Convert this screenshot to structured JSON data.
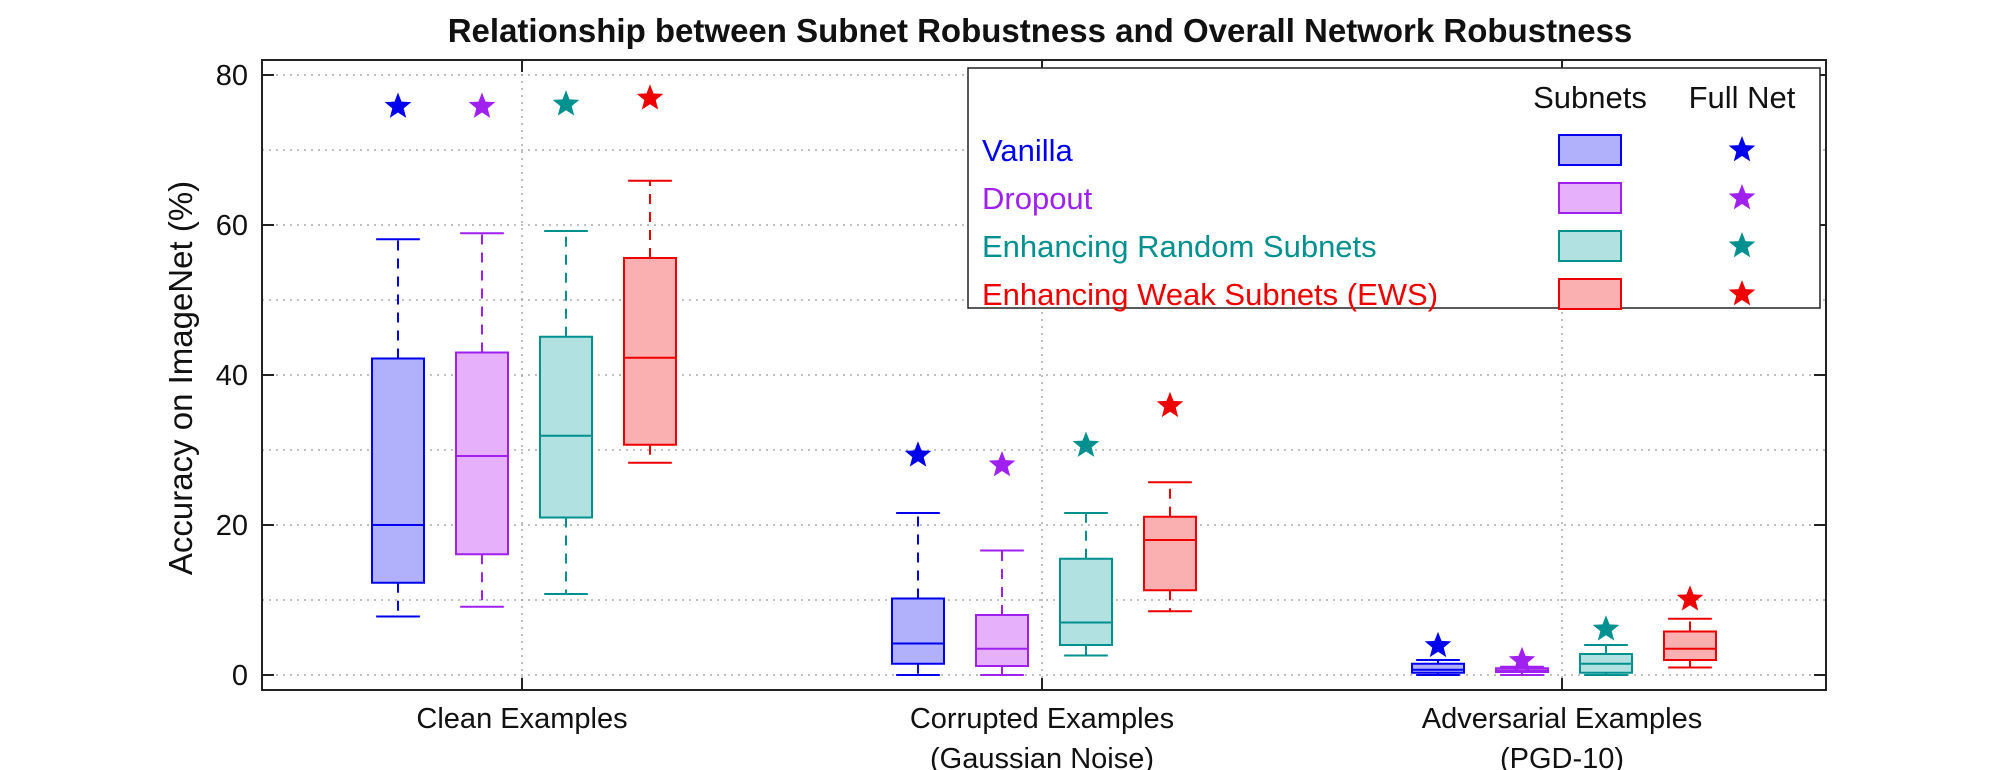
{
  "chart_data": {
    "type": "boxplot",
    "title": "Relationship between Subnet Robustness and Overall Network Robustness",
    "ylabel": "Accuracy on ImageNet (%)",
    "xlabel": "",
    "ylim": [
      -2,
      82
    ],
    "yticks": [
      0,
      20,
      40,
      60,
      80
    ],
    "grid": true,
    "groups": [
      {
        "label_lines": [
          "Clean Examples"
        ]
      },
      {
        "label_lines": [
          "Corrupted Examples",
          "(Gaussian Noise)"
        ]
      },
      {
        "label_lines": [
          "Adversarial Examples",
          "(PGD-10)"
        ]
      }
    ],
    "series": [
      {
        "name": "Vanilla",
        "edge_color": "#0000ee",
        "fill_color": "#b0b0fb",
        "boxes": [
          {
            "whisker_low": 7.8,
            "q1": 12.3,
            "median": 20.0,
            "q3": 42.2,
            "whisker_high": 58.1
          },
          {
            "whisker_low": 0.0,
            "q1": 1.5,
            "median": 4.2,
            "q3": 10.2,
            "whisker_high": 21.6
          },
          {
            "whisker_low": 0.0,
            "q1": 0.3,
            "median": 0.7,
            "q3": 1.5,
            "whisker_high": 2.0
          }
        ],
        "full_net": [
          75.8,
          29.3,
          3.9
        ]
      },
      {
        "name": "Dropout",
        "edge_color": "#a020f0",
        "fill_color": "#e6b0fa",
        "boxes": [
          {
            "whisker_low": 9.1,
            "q1": 16.1,
            "median": 29.2,
            "q3": 43.0,
            "whisker_high": 58.9
          },
          {
            "whisker_low": 0.0,
            "q1": 1.2,
            "median": 3.5,
            "q3": 8.0,
            "whisker_high": 16.6
          },
          {
            "whisker_low": 0.0,
            "q1": 0.4,
            "median": 0.6,
            "q3": 0.9,
            "whisker_high": 1.1
          }
        ],
        "full_net": [
          75.8,
          28.0,
          1.9
        ]
      },
      {
        "name": "Enhancing Random Subnets",
        "edge_color": "#009090",
        "fill_color": "#b2e1e1",
        "boxes": [
          {
            "whisker_low": 10.8,
            "q1": 21.0,
            "median": 31.9,
            "q3": 45.1,
            "whisker_high": 59.2
          },
          {
            "whisker_low": 2.6,
            "q1": 4.0,
            "median": 7.0,
            "q3": 15.5,
            "whisker_high": 21.6
          },
          {
            "whisker_low": 0.0,
            "q1": 0.3,
            "median": 1.5,
            "q3": 2.8,
            "whisker_high": 4.0
          }
        ],
        "full_net": [
          76.1,
          30.6,
          6.1
        ]
      },
      {
        "name": "Enhancing Weak Subnets (EWS)",
        "edge_color": "#ee0000",
        "fill_color": "#fab0b0",
        "boxes": [
          {
            "whisker_low": 28.3,
            "q1": 30.7,
            "median": 42.3,
            "q3": 55.6,
            "whisker_high": 65.9
          },
          {
            "whisker_low": 8.5,
            "q1": 11.3,
            "median": 18.0,
            "q3": 21.1,
            "whisker_high": 25.7
          },
          {
            "whisker_low": 1.0,
            "q1": 2.0,
            "median": 3.5,
            "q3": 5.8,
            "whisker_high": 7.5
          }
        ],
        "full_net": [
          76.9,
          35.9,
          10.1
        ]
      }
    ],
    "legend": {
      "position": "top-right",
      "column_headers": [
        "Subnets",
        "Full Net"
      ]
    }
  }
}
